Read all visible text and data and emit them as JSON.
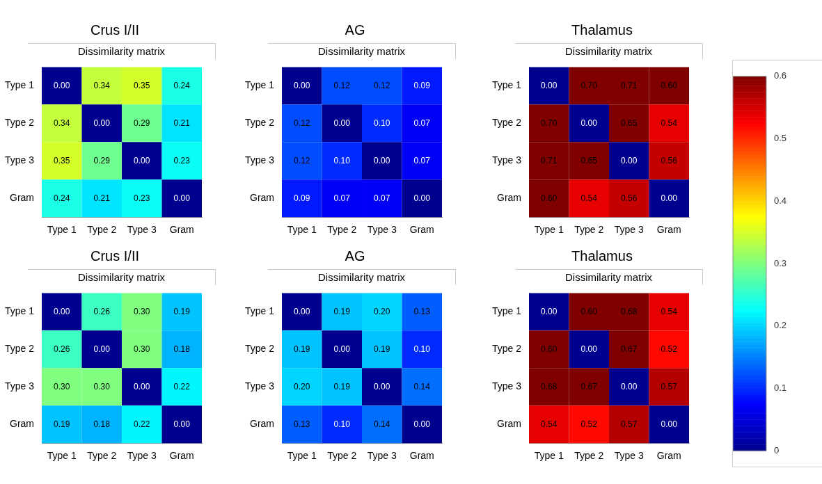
{
  "chart_data": [
    {
      "type": "heatmap",
      "title": "Crus I/II",
      "subtitle": "Dissimilarity matrix",
      "categories": [
        "Type 1",
        "Type 2",
        "Type 3",
        "Gram"
      ],
      "y_categories": [
        "Type 1",
        "Type 2",
        "Type 3",
        "Gram"
      ],
      "cells": [
        [
          0,
          0.34,
          0.35,
          0.24
        ],
        [
          0.34,
          0,
          0.29,
          0.21
        ],
        [
          0.35,
          0.29,
          0,
          0.23
        ],
        [
          0.24,
          0.21,
          0.23,
          0
        ]
      ],
      "cell_labels": [
        [
          "0.00",
          "0.34",
          "0.35",
          "0.24"
        ],
        [
          "0.34",
          "0.00",
          "0.29",
          "0.21"
        ],
        [
          "0.35",
          "0.29",
          "0.00",
          "0.23"
        ],
        [
          "0.24",
          "0.21",
          "0.23",
          "0.00"
        ]
      ]
    },
    {
      "type": "heatmap",
      "title": "AG",
      "subtitle": "Dissimilarity matrix",
      "categories": [
        "Type 1",
        "Type 2",
        "Type 3",
        "Gram"
      ],
      "y_categories": [
        "Type 1",
        "Type 2",
        "Type 3",
        "Gram"
      ],
      "cells": [
        [
          0,
          0.12,
          0.12,
          0.09
        ],
        [
          0.12,
          0,
          0.1,
          0.07
        ],
        [
          0.12,
          0.1,
          0,
          0.07
        ],
        [
          0.09,
          0.07,
          0.07,
          0
        ]
      ],
      "cell_labels": [
        [
          "0.00",
          "0.12",
          "0.12",
          "0.09"
        ],
        [
          "0.12",
          "0.00",
          "0.10",
          "0.07"
        ],
        [
          "0.12",
          "0.10",
          "0.00",
          "0.07"
        ],
        [
          "0.09",
          "0.07",
          "0.07",
          "0.00"
        ]
      ]
    },
    {
      "type": "heatmap",
      "title": "Thalamus",
      "subtitle": "Dissimilarity matrix",
      "categories": [
        "Type 1",
        "Type 2",
        "Type 3",
        "Gram"
      ],
      "y_categories": [
        "Type 1",
        "Type 2",
        "Type 3",
        "Gram"
      ],
      "clim": [
        0,
        0.6
      ],
      "cticks": [
        0,
        0.1,
        0.2,
        0.3,
        0.4,
        0.5,
        0.6
      ],
      "cells": [
        [
          0,
          0.7,
          0.71,
          0.6
        ],
        [
          0.7,
          0,
          0.65,
          0.54
        ],
        [
          0.71,
          0.65,
          0,
          0.56
        ],
        [
          0.6,
          0.54,
          0.56,
          0
        ]
      ],
      "cell_labels": [
        [
          "0.00",
          "0.70",
          "0.71",
          "0.60"
        ],
        [
          "0.70",
          "0.00",
          "0.65",
          "0.54"
        ],
        [
          "0.71",
          "0.65",
          "0.00",
          "0.56"
        ],
        [
          "0.60",
          "0.54",
          "0.56",
          "0.00"
        ]
      ]
    },
    {
      "type": "heatmap",
      "title": "Crus I/II",
      "subtitle": "Dissimilarity matrix",
      "categories": [
        "Type 1",
        "Type 2",
        "Type 3",
        "Gram"
      ],
      "y_categories": [
        "Type 1",
        "Type 2",
        "Type 3",
        "Gram"
      ],
      "cells": [
        [
          0,
          0.26,
          0.3,
          0.19
        ],
        [
          0.26,
          0,
          0.3,
          0.18
        ],
        [
          0.3,
          0.3,
          0,
          0.22
        ],
        [
          0.19,
          0.18,
          0.22,
          0
        ]
      ],
      "cell_labels": [
        [
          "0.00",
          "0.26",
          "0.30",
          "0.19"
        ],
        [
          "0.26",
          "0.00",
          "0.30",
          "0.18"
        ],
        [
          "0.30",
          "0.30",
          "0.00",
          "0.22"
        ],
        [
          "0.19",
          "0.18",
          "0.22",
          "0.00"
        ]
      ]
    },
    {
      "type": "heatmap",
      "title": "AG",
      "subtitle": "Dissimilarity matrix",
      "categories": [
        "Type 1",
        "Type 2",
        "Type 3",
        "Gram"
      ],
      "y_categories": [
        "Type 1",
        "Type 2",
        "Type 3",
        "Gram"
      ],
      "cells": [
        [
          0,
          0.19,
          0.2,
          0.13
        ],
        [
          0.19,
          0,
          0.19,
          0.1
        ],
        [
          0.2,
          0.19,
          0,
          0.14
        ],
        [
          0.13,
          0.1,
          0.14,
          0
        ]
      ],
      "cell_labels": [
        [
          "0.00",
          "0.19",
          "0.20",
          "0.13"
        ],
        [
          "0.19",
          "0.00",
          "0.19",
          "0.10"
        ],
        [
          "0.20",
          "0.19",
          "0.00",
          "0.14"
        ],
        [
          "0.13",
          "0.10",
          "0.14",
          "0.00"
        ]
      ]
    },
    {
      "type": "heatmap",
      "title": "Thalamus",
      "subtitle": "Dissimilarity matrix",
      "categories": [
        "Type 1",
        "Type 2",
        "Type 3",
        "Gram"
      ],
      "y_categories": [
        "Type 1",
        "Type 2",
        "Type 3",
        "Gram"
      ],
      "cells": [
        [
          0,
          0.6,
          0.68,
          0.54
        ],
        [
          0.6,
          0,
          0.67,
          0.52
        ],
        [
          0.68,
          0.67,
          0,
          0.57
        ],
        [
          0.54,
          0.52,
          0.57,
          0
        ]
      ],
      "cell_labels": [
        [
          "0.00",
          "0.60",
          "0.68",
          "0.54"
        ],
        [
          "0.60",
          "0.00",
          "0.67",
          "0.52"
        ],
        [
          "0.68",
          "0.67",
          "0.00",
          "0.57"
        ],
        [
          "0.54",
          "0.52",
          "0.57",
          "0.00"
        ]
      ]
    }
  ]
}
